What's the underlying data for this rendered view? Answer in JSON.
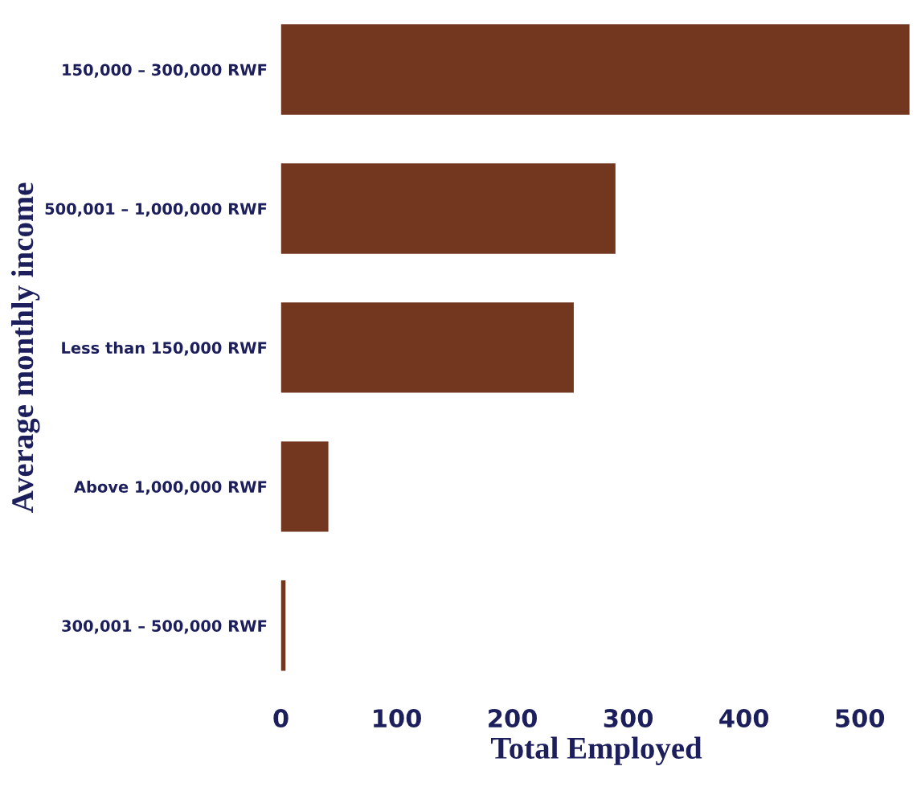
{
  "chart_data": {
    "type": "bar",
    "orientation": "horizontal",
    "xlabel": "Total Employed",
    "ylabel": "Average monthly income",
    "categories": [
      "150,000 – 300,000 RWF",
      "500,001 – 1,000,000 RWF",
      "Less than 150,000 RWF",
      "Above 1,000,000 RWF",
      "300,001 – 500,000 RWF"
    ],
    "values": [
      543,
      289,
      253,
      41,
      4
    ],
    "color": "#73361f",
    "xlim": [
      0,
      545
    ],
    "xticks": [
      0,
      100,
      200,
      300,
      400,
      500
    ],
    "grid": false
  }
}
